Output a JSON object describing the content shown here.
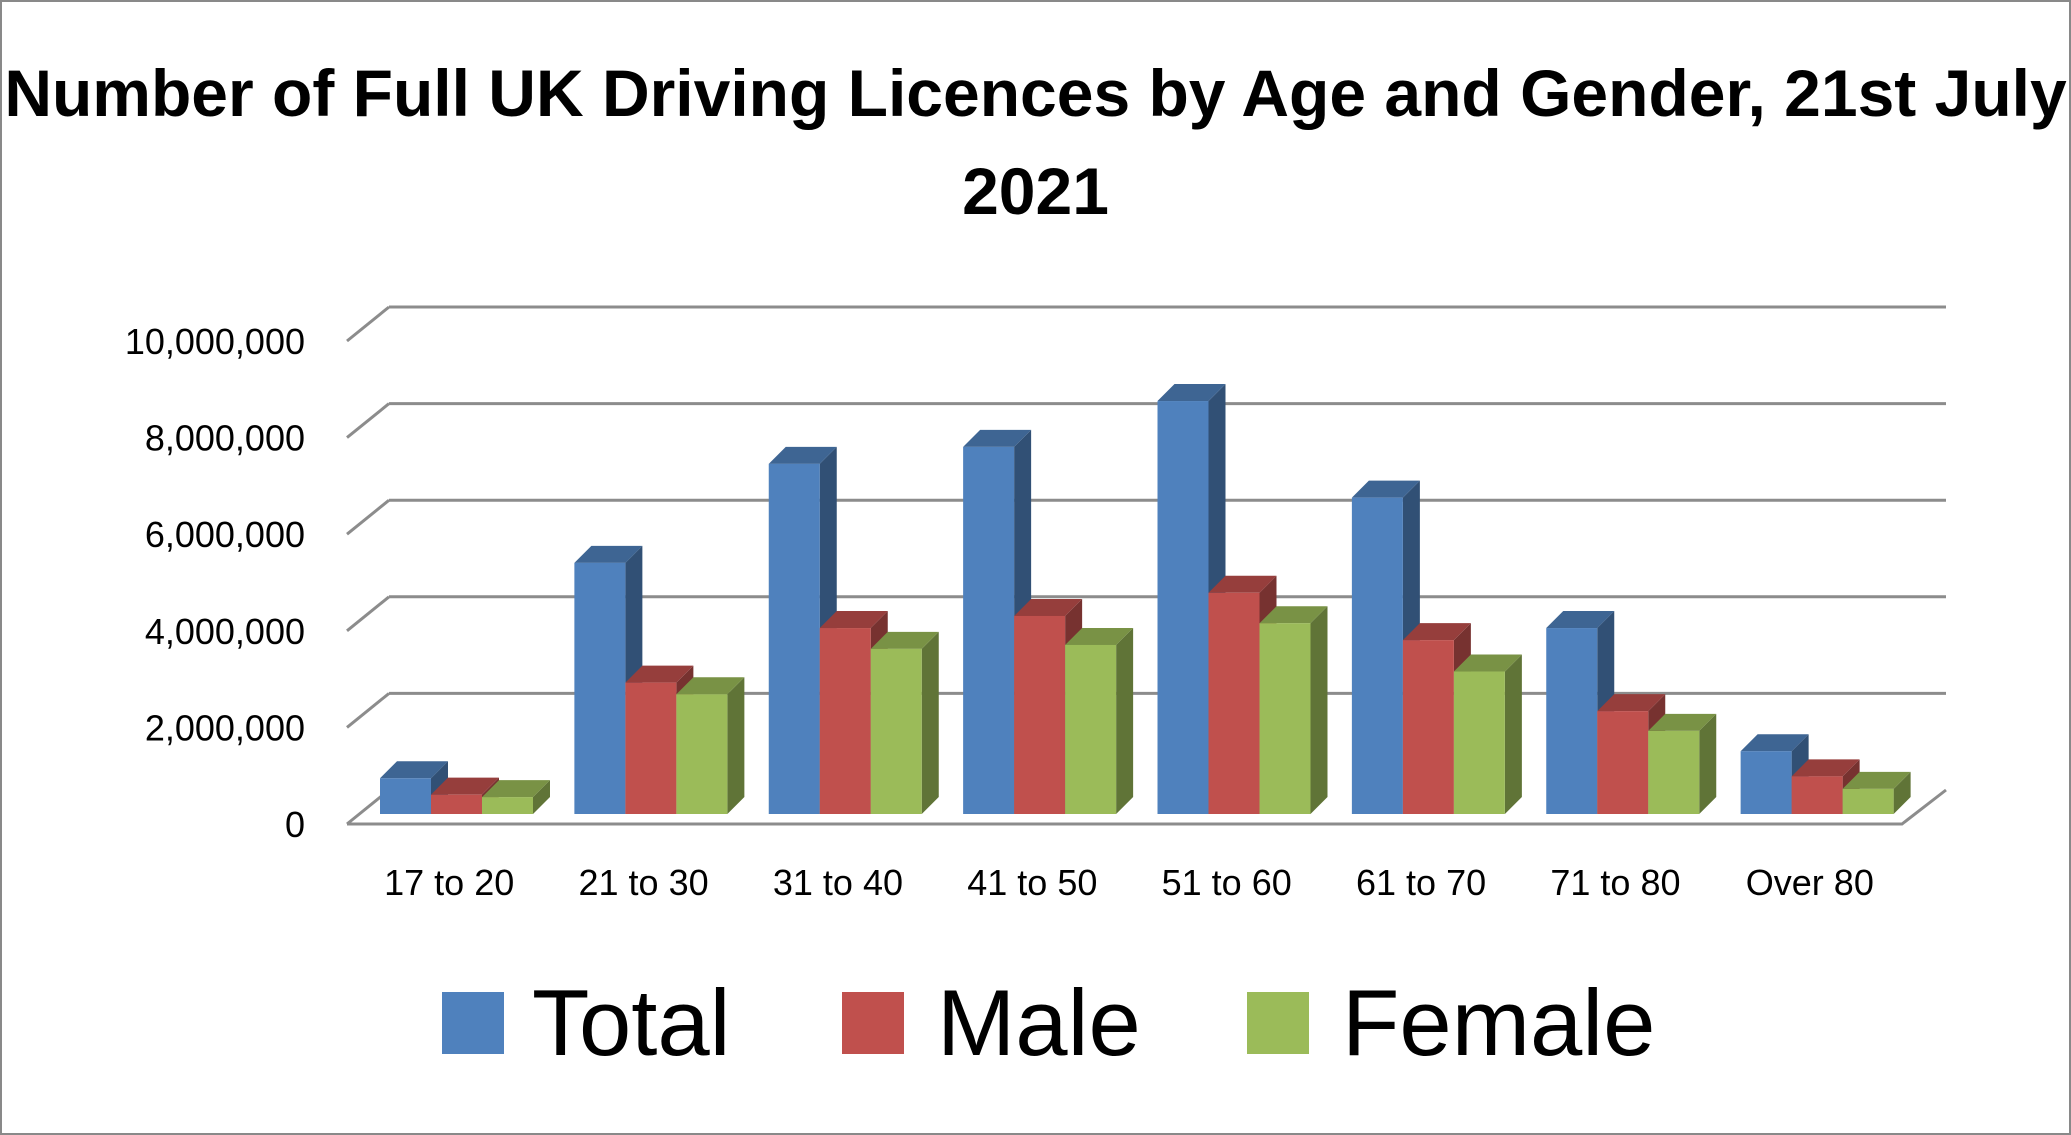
{
  "chart_data": {
    "type": "bar",
    "title": "Number of Full UK Driving Licences by Age and Gender, 21st July 2021",
    "categories": [
      "17 to 20",
      "21 to 30",
      "31 to 40",
      "41 to 50",
      "51 to 60",
      "61 to 70",
      "71 to 80",
      "Over 80"
    ],
    "series": [
      {
        "name": "Total",
        "color": "#4F81BD",
        "values": [
          740000,
          5200000,
          7250000,
          7600000,
          8550000,
          6550000,
          3850000,
          1300000
        ]
      },
      {
        "name": "Male",
        "color": "#C0504D",
        "values": [
          400000,
          2720000,
          3850000,
          4100000,
          4580000,
          3600000,
          2130000,
          780000
        ]
      },
      {
        "name": "Female",
        "color": "#9BBB59",
        "values": [
          350000,
          2480000,
          3420000,
          3500000,
          3950000,
          2950000,
          1720000,
          520000
        ]
      }
    ],
    "y_ticks": [
      "0",
      "2,000,000",
      "4,000,000",
      "6,000,000",
      "8,000,000",
      "10,000,000"
    ],
    "ylim": [
      0,
      10000000
    ],
    "xlabel": "",
    "ylabel": "",
    "grid": true,
    "legend_position": "bottom",
    "style": "3d-clustered-column"
  }
}
